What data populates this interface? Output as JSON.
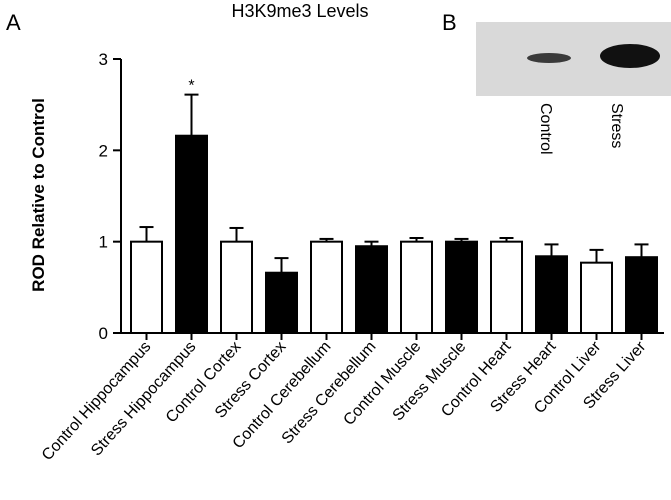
{
  "panel_a_label": "A",
  "panel_b": {
    "label": "B",
    "lanes": [
      "Control",
      "Stress"
    ]
  },
  "chart_data": {
    "type": "bar",
    "title": "H3K9me3 Levels",
    "y_label": "ROD Relative to Control",
    "categories": [
      "Control Hippocampus",
      "Stress Hippocampus",
      "Control Cortex",
      "Stress Cortex",
      "Control Cerebellum",
      "Stress Cerebellum",
      "Control Muscle",
      "Stress Muscle",
      "Control Heart",
      "Stress Heart",
      "Control Liver",
      "Stress Liver"
    ],
    "values": [
      1.0,
      2.16,
      1.0,
      0.66,
      1.0,
      0.95,
      1.0,
      1.0,
      1.0,
      0.84,
      0.77,
      0.83
    ],
    "errors": [
      0.16,
      0.45,
      0.15,
      0.16,
      0.03,
      0.05,
      0.04,
      0.03,
      0.04,
      0.13,
      0.14,
      0.14
    ],
    "colors": [
      "#ffffff",
      "#000000",
      "#ffffff",
      "#000000",
      "#ffffff",
      "#000000",
      "#ffffff",
      "#000000",
      "#ffffff",
      "#000000",
      "#ffffff",
      "#000000"
    ],
    "ylim": [
      0,
      3
    ],
    "yticks": [
      0,
      1,
      2,
      3
    ],
    "grid": false,
    "annotations": [
      {
        "text": "*",
        "category": "Stress Hippocampus"
      }
    ]
  }
}
